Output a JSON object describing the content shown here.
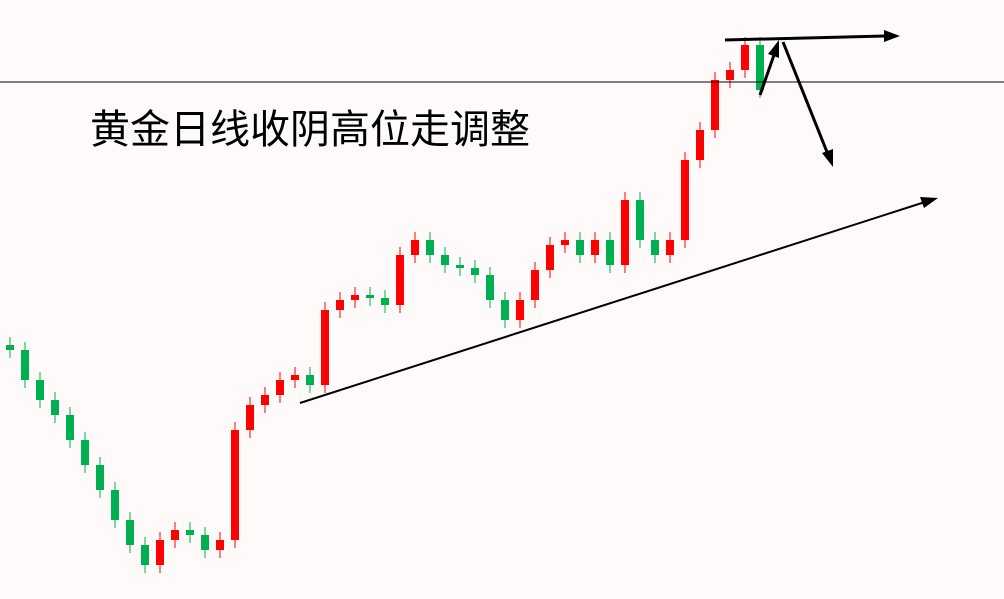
{
  "chart_data": {
    "type": "candlestick",
    "title": "黄金日线收阴高位走调整",
    "up_color": "#ff0000",
    "down_color": "#00b050",
    "ylim": [
      0,
      599
    ],
    "open": [
      254,
      249,
      219,
      199,
      184,
      159,
      134,
      109,
      79,
      54,
      34,
      59,
      69,
      64,
      49,
      59,
      169,
      194,
      204,
      219,
      224,
      214,
      289,
      299,
      304,
      301,
      294,
      344,
      359,
      344,
      334,
      331,
      324,
      299,
      279,
      299,
      329,
      354,
      359,
      344,
      359,
      334,
      399,
      359,
      344,
      359,
      439,
      469,
      519,
      529,
      554
    ],
    "high": [
      262,
      257,
      227,
      207,
      192,
      167,
      142,
      117,
      87,
      62,
      67,
      77,
      77,
      72,
      67,
      177,
      202,
      212,
      227,
      232,
      232,
      297,
      307,
      312,
      312,
      309,
      352,
      367,
      367,
      352,
      342,
      339,
      332,
      307,
      307,
      337,
      362,
      367,
      367,
      367,
      367,
      407,
      407,
      367,
      367,
      447,
      477,
      527,
      537,
      562,
      562
    ],
    "low": [
      241,
      211,
      191,
      176,
      151,
      126,
      101,
      71,
      46,
      26,
      26,
      51,
      56,
      41,
      41,
      51,
      161,
      186,
      196,
      211,
      206,
      206,
      281,
      291,
      293,
      286,
      286,
      336,
      336,
      326,
      323,
      316,
      291,
      271,
      271,
      291,
      321,
      346,
      336,
      336,
      326,
      326,
      351,
      336,
      336,
      351,
      431,
      461,
      511,
      521,
      501
    ],
    "close": [
      249,
      219,
      199,
      184,
      159,
      134,
      109,
      79,
      54,
      34,
      59,
      69,
      64,
      49,
      59,
      169,
      194,
      204,
      219,
      224,
      214,
      289,
      299,
      304,
      301,
      294,
      344,
      359,
      344,
      334,
      331,
      324,
      299,
      279,
      299,
      329,
      354,
      359,
      344,
      359,
      334,
      399,
      359,
      344,
      359,
      439,
      469,
      519,
      529,
      554,
      509
    ]
  }
}
